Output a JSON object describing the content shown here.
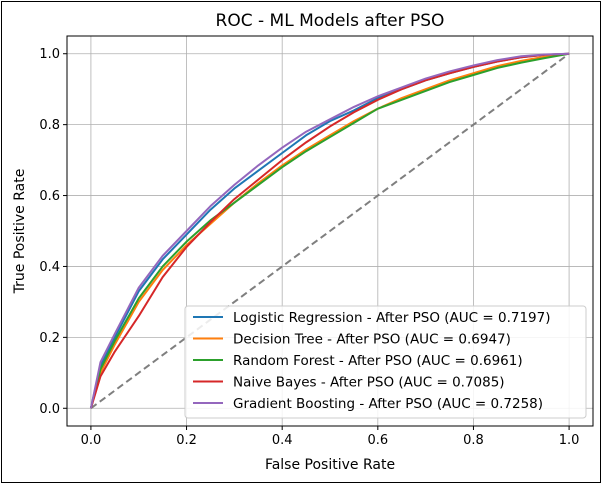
{
  "chart_data": {
    "type": "line",
    "title": "ROC - ML Models after PSO",
    "xlabel": "False Positive Rate",
    "ylabel": "True Positive Rate",
    "xlim": [
      -0.05,
      1.05
    ],
    "ylim": [
      -0.05,
      1.05
    ],
    "xticks": [
      0.0,
      0.2,
      0.4,
      0.6,
      0.8,
      1.0
    ],
    "yticks": [
      0.0,
      0.2,
      0.4,
      0.6,
      0.8,
      1.0
    ],
    "xtick_labels": [
      "0.0",
      "0.2",
      "0.4",
      "0.6",
      "0.8",
      "1.0"
    ],
    "ytick_labels": [
      "0.0",
      "0.2",
      "0.4",
      "0.6",
      "0.8",
      "1.0"
    ],
    "grid": true,
    "legend_position": "lower right",
    "series": [
      {
        "name": "Logistic Regression - After PSO (AUC = 0.7197)",
        "color": "#1f77b4",
        "x": [
          0,
          0.02,
          0.05,
          0.1,
          0.15,
          0.2,
          0.25,
          0.3,
          0.35,
          0.4,
          0.45,
          0.5,
          0.55,
          0.6,
          0.65,
          0.7,
          0.75,
          0.8,
          0.85,
          0.9,
          0.95,
          1.0
        ],
        "y": [
          0,
          0.12,
          0.2,
          0.33,
          0.42,
          0.49,
          0.56,
          0.62,
          0.67,
          0.72,
          0.77,
          0.81,
          0.84,
          0.875,
          0.9,
          0.925,
          0.945,
          0.963,
          0.978,
          0.99,
          0.997,
          1.0
        ]
      },
      {
        "name": "Decision Tree - After PSO (AUC = 0.6947)",
        "color": "#ff7f0e",
        "x": [
          0,
          0.02,
          0.05,
          0.1,
          0.15,
          0.2,
          0.25,
          0.3,
          0.35,
          0.4,
          0.45,
          0.5,
          0.55,
          0.6,
          0.65,
          0.7,
          0.75,
          0.8,
          0.85,
          0.9,
          0.95,
          1.0
        ],
        "y": [
          0,
          0.1,
          0.18,
          0.3,
          0.39,
          0.46,
          0.52,
          0.58,
          0.635,
          0.685,
          0.73,
          0.77,
          0.81,
          0.845,
          0.875,
          0.9,
          0.925,
          0.945,
          0.965,
          0.98,
          0.992,
          1.0
        ]
      },
      {
        "name": "Random Forest - After PSO (AUC = 0.6961)",
        "color": "#2ca02c",
        "x": [
          0,
          0.02,
          0.05,
          0.1,
          0.15,
          0.2,
          0.25,
          0.3,
          0.35,
          0.4,
          0.45,
          0.5,
          0.55,
          0.6,
          0.65,
          0.7,
          0.75,
          0.8,
          0.85,
          0.9,
          0.95,
          1.0
        ],
        "y": [
          0,
          0.11,
          0.19,
          0.31,
          0.4,
          0.47,
          0.53,
          0.58,
          0.63,
          0.68,
          0.725,
          0.765,
          0.805,
          0.845,
          0.87,
          0.895,
          0.92,
          0.94,
          0.96,
          0.975,
          0.988,
          1.0
        ]
      },
      {
        "name": "Naive Bayes - After PSO (AUC = 0.7085)",
        "color": "#d62728",
        "x": [
          0,
          0.02,
          0.05,
          0.1,
          0.15,
          0.2,
          0.25,
          0.3,
          0.35,
          0.4,
          0.45,
          0.5,
          0.55,
          0.6,
          0.65,
          0.7,
          0.75,
          0.8,
          0.85,
          0.9,
          0.95,
          1.0
        ],
        "y": [
          0,
          0.09,
          0.16,
          0.26,
          0.37,
          0.455,
          0.525,
          0.59,
          0.645,
          0.7,
          0.75,
          0.795,
          0.835,
          0.87,
          0.9,
          0.925,
          0.945,
          0.963,
          0.978,
          0.99,
          0.997,
          1.0
        ]
      },
      {
        "name": "Gradient Boosting - After PSO (AUC = 0.7258)",
        "color": "#9467bd",
        "x": [
          0,
          0.02,
          0.05,
          0.1,
          0.15,
          0.2,
          0.25,
          0.3,
          0.35,
          0.4,
          0.45,
          0.5,
          0.55,
          0.6,
          0.65,
          0.7,
          0.75,
          0.8,
          0.85,
          0.9,
          0.95,
          1.0
        ],
        "y": [
          0,
          0.13,
          0.21,
          0.34,
          0.43,
          0.5,
          0.57,
          0.63,
          0.685,
          0.735,
          0.78,
          0.815,
          0.85,
          0.88,
          0.905,
          0.93,
          0.95,
          0.967,
          0.982,
          0.993,
          0.998,
          1.0
        ]
      }
    ],
    "reference_line": {
      "x": [
        0,
        1
      ],
      "y": [
        0,
        1
      ],
      "color": "#7f7f7f",
      "style": "dashed"
    }
  }
}
